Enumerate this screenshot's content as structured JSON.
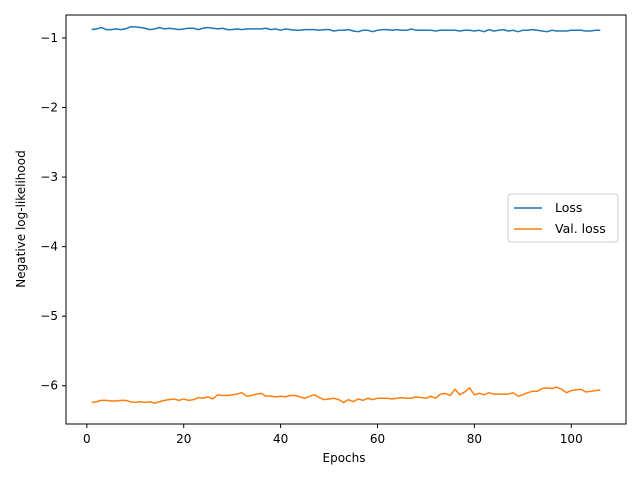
{
  "chart_data": {
    "type": "line",
    "title": "",
    "xlabel": "Epochs",
    "ylabel": "Negative log-likelihood",
    "xlim": [
      -4.3,
      111.3
    ],
    "ylim": [
      -6.55,
      -0.67
    ],
    "xticks": [
      0,
      20,
      40,
      60,
      80,
      100
    ],
    "yticks": [
      -1,
      -2,
      -3,
      -4,
      -5,
      -6
    ],
    "xtick_labels": [
      "0",
      "20",
      "40",
      "60",
      "80",
      "100"
    ],
    "ytick_labels": [
      "−1",
      "−2",
      "−3",
      "−4",
      "−5",
      "−6"
    ],
    "grid": false,
    "legend_position": "center-right",
    "x": [
      1,
      2,
      3,
      4,
      5,
      6,
      7,
      8,
      9,
      10,
      11,
      12,
      13,
      14,
      15,
      16,
      17,
      18,
      19,
      20,
      21,
      22,
      23,
      24,
      25,
      26,
      27,
      28,
      29,
      30,
      31,
      32,
      33,
      34,
      35,
      36,
      37,
      38,
      39,
      40,
      41,
      42,
      43,
      44,
      45,
      46,
      47,
      48,
      49,
      50,
      51,
      52,
      53,
      54,
      55,
      56,
      57,
      58,
      59,
      60,
      61,
      62,
      63,
      64,
      65,
      66,
      67,
      68,
      69,
      70,
      71,
      72,
      73,
      74,
      75,
      76,
      77,
      78,
      79,
      80,
      81,
      82,
      83,
      84,
      85,
      86,
      87,
      88,
      89,
      90,
      91,
      92,
      93,
      94,
      95,
      96,
      97,
      98,
      99,
      100,
      101,
      102,
      103,
      104,
      105,
      106
    ],
    "series": [
      {
        "name": "Loss",
        "color": "#1f77b4",
        "values": [
          -0.88,
          -0.87,
          -0.85,
          -0.88,
          -0.88,
          -0.87,
          -0.88,
          -0.87,
          -0.84,
          -0.84,
          -0.85,
          -0.86,
          -0.88,
          -0.87,
          -0.85,
          -0.87,
          -0.86,
          -0.87,
          -0.88,
          -0.87,
          -0.86,
          -0.86,
          -0.88,
          -0.86,
          -0.85,
          -0.86,
          -0.87,
          -0.86,
          -0.88,
          -0.88,
          -0.87,
          -0.88,
          -0.87,
          -0.87,
          -0.87,
          -0.87,
          -0.86,
          -0.88,
          -0.87,
          -0.89,
          -0.87,
          -0.88,
          -0.89,
          -0.89,
          -0.88,
          -0.88,
          -0.88,
          -0.89,
          -0.88,
          -0.88,
          -0.9,
          -0.89,
          -0.89,
          -0.88,
          -0.9,
          -0.91,
          -0.89,
          -0.89,
          -0.91,
          -0.89,
          -0.88,
          -0.88,
          -0.89,
          -0.88,
          -0.89,
          -0.89,
          -0.87,
          -0.89,
          -0.89,
          -0.89,
          -0.89,
          -0.9,
          -0.89,
          -0.89,
          -0.89,
          -0.89,
          -0.9,
          -0.89,
          -0.89,
          -0.9,
          -0.89,
          -0.91,
          -0.88,
          -0.9,
          -0.89,
          -0.88,
          -0.9,
          -0.89,
          -0.91,
          -0.89,
          -0.89,
          -0.88,
          -0.89,
          -0.9,
          -0.91,
          -0.89,
          -0.9,
          -0.9,
          -0.9,
          -0.89,
          -0.89,
          -0.89,
          -0.9,
          -0.9,
          -0.89,
          -0.89
        ]
      },
      {
        "name": "Val. loss",
        "color": "#ff7f0e",
        "values": [
          -6.24,
          -6.23,
          -6.21,
          -6.21,
          -6.22,
          -6.22,
          -6.21,
          -6.21,
          -6.23,
          -6.24,
          -6.23,
          -6.24,
          -6.23,
          -6.25,
          -6.23,
          -6.21,
          -6.2,
          -6.19,
          -6.21,
          -6.19,
          -6.21,
          -6.2,
          -6.17,
          -6.18,
          -6.16,
          -6.19,
          -6.13,
          -6.14,
          -6.14,
          -6.13,
          -6.12,
          -6.1,
          -6.15,
          -6.14,
          -6.12,
          -6.11,
          -6.15,
          -6.15,
          -6.16,
          -6.15,
          -6.16,
          -6.14,
          -6.14,
          -6.16,
          -6.18,
          -6.15,
          -6.13,
          -6.17,
          -6.2,
          -6.19,
          -6.18,
          -6.2,
          -6.24,
          -6.2,
          -6.23,
          -6.19,
          -6.21,
          -6.18,
          -6.2,
          -6.18,
          -6.18,
          -6.18,
          -6.19,
          -6.18,
          -6.17,
          -6.18,
          -6.18,
          -6.16,
          -6.17,
          -6.18,
          -6.15,
          -6.18,
          -6.12,
          -6.11,
          -6.14,
          -6.05,
          -6.13,
          -6.09,
          -6.03,
          -6.13,
          -6.11,
          -6.13,
          -6.1,
          -6.12,
          -6.12,
          -6.12,
          -6.12,
          -6.1,
          -6.15,
          -6.13,
          -6.1,
          -6.08,
          -6.08,
          -6.04,
          -6.03,
          -6.04,
          -6.02,
          -6.05,
          -6.1,
          -6.07,
          -6.06,
          -6.05,
          -6.09,
          -6.08,
          -6.07,
          -6.06
        ]
      }
    ]
  }
}
